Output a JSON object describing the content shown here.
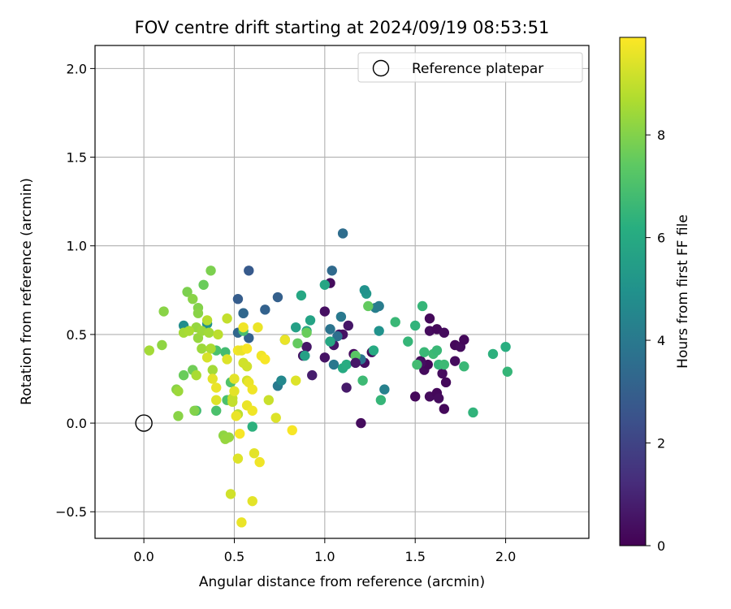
{
  "chart_data": {
    "type": "scatter",
    "title": "FOV centre drift starting at 2024/09/19 08:53:51",
    "xlabel": "Angular distance from reference (arcmin)",
    "ylabel": "Rotation from reference (arcmin)",
    "xlim": [
      -0.27,
      2.46
    ],
    "ylim": [
      -0.65,
      2.13
    ],
    "xticks": [
      0.0,
      0.5,
      1.0,
      1.5,
      2.0
    ],
    "xtick_labels": [
      "0.0",
      "0.5",
      "1.0",
      "1.5",
      "2.0"
    ],
    "yticks": [
      -0.5,
      0.0,
      0.5,
      1.0,
      1.5,
      2.0
    ],
    "ytick_labels": [
      "−0.5",
      "0.0",
      "0.5",
      "1.0",
      "1.5",
      "2.0"
    ],
    "grid": true,
    "legend": {
      "placement": "top-right",
      "entries": [
        "Reference platepar"
      ]
    },
    "reference_point": {
      "x": 0.0,
      "y": 0.0,
      "label": "Reference platepar"
    },
    "colorbar": {
      "label": "Hours from first FF file",
      "range": [
        0,
        9.9
      ],
      "ticks": [
        0,
        2,
        4,
        6,
        8
      ],
      "tick_labels": [
        "0",
        "2",
        "4",
        "6",
        "8"
      ],
      "colormap": "viridis"
    },
    "points": [
      {
        "x": 1.03,
        "y": 0.79,
        "h": 0.3
      },
      {
        "x": 1.0,
        "y": 0.63,
        "h": 0.4
      },
      {
        "x": 1.1,
        "y": 0.5,
        "h": 0.5
      },
      {
        "x": 1.13,
        "y": 0.55,
        "h": 0.6
      },
      {
        "x": 1.08,
        "y": 0.5,
        "h": 0.4
      },
      {
        "x": 1.0,
        "y": 0.37,
        "h": 0.5
      },
      {
        "x": 1.05,
        "y": 0.44,
        "h": 0.6
      },
      {
        "x": 1.16,
        "y": 0.39,
        "h": 0.3
      },
      {
        "x": 1.18,
        "y": 0.35,
        "h": 0.5
      },
      {
        "x": 1.22,
        "y": 0.34,
        "h": 0.4
      },
      {
        "x": 1.26,
        "y": 0.4,
        "h": 0.3
      },
      {
        "x": 0.93,
        "y": 0.27,
        "h": 0.8
      },
      {
        "x": 0.9,
        "y": 0.43,
        "h": 0.6
      },
      {
        "x": 0.88,
        "y": 0.38,
        "h": 0.5
      },
      {
        "x": 1.12,
        "y": 0.2,
        "h": 0.7
      },
      {
        "x": 1.2,
        "y": 0.0,
        "h": 0.3
      },
      {
        "x": 1.58,
        "y": 0.59,
        "h": 0.2
      },
      {
        "x": 1.58,
        "y": 0.52,
        "h": 0.3
      },
      {
        "x": 1.62,
        "y": 0.53,
        "h": 0.2
      },
      {
        "x": 1.66,
        "y": 0.51,
        "h": 0.3
      },
      {
        "x": 1.72,
        "y": 0.44,
        "h": 0.2
      },
      {
        "x": 1.75,
        "y": 0.43,
        "h": 0.3
      },
      {
        "x": 1.77,
        "y": 0.47,
        "h": 0.2
      },
      {
        "x": 1.72,
        "y": 0.35,
        "h": 0.3
      },
      {
        "x": 1.53,
        "y": 0.35,
        "h": 0.2
      },
      {
        "x": 1.55,
        "y": 0.3,
        "h": 0.3
      },
      {
        "x": 1.57,
        "y": 0.33,
        "h": 0.2
      },
      {
        "x": 1.58,
        "y": 0.15,
        "h": 0.3
      },
      {
        "x": 1.62,
        "y": 0.17,
        "h": 0.2
      },
      {
        "x": 1.65,
        "y": 0.28,
        "h": 0.3
      },
      {
        "x": 1.67,
        "y": 0.23,
        "h": 0.2
      },
      {
        "x": 1.63,
        "y": 0.14,
        "h": 0.3
      },
      {
        "x": 1.66,
        "y": 0.08,
        "h": 0.2
      },
      {
        "x": 1.5,
        "y": 0.15,
        "h": 0.2
      },
      {
        "x": 1.53,
        "y": 0.34,
        "h": 0.4
      },
      {
        "x": 1.1,
        "y": 1.07,
        "h": 3.5
      },
      {
        "x": 1.04,
        "y": 0.86,
        "h": 3.4
      },
      {
        "x": 0.58,
        "y": 0.86,
        "h": 2.8
      },
      {
        "x": 0.52,
        "y": 0.7,
        "h": 2.9
      },
      {
        "x": 0.74,
        "y": 0.71,
        "h": 3.0
      },
      {
        "x": 0.67,
        "y": 0.64,
        "h": 3.1
      },
      {
        "x": 0.55,
        "y": 0.62,
        "h": 3.2
      },
      {
        "x": 0.58,
        "y": 0.48,
        "h": 3.1
      },
      {
        "x": 0.52,
        "y": 0.51,
        "h": 3.3
      },
      {
        "x": 1.03,
        "y": 0.53,
        "h": 3.8
      },
      {
        "x": 1.09,
        "y": 0.6,
        "h": 4.0
      },
      {
        "x": 1.05,
        "y": 0.33,
        "h": 3.9
      },
      {
        "x": 1.07,
        "y": 0.49,
        "h": 3.6
      },
      {
        "x": 1.2,
        "y": 0.36,
        "h": 3.8
      },
      {
        "x": 1.28,
        "y": 0.65,
        "h": 4.2
      },
      {
        "x": 1.3,
        "y": 0.66,
        "h": 4.1
      },
      {
        "x": 1.33,
        "y": 0.19,
        "h": 4.3
      },
      {
        "x": 0.74,
        "y": 0.21,
        "h": 4.0
      },
      {
        "x": 0.78,
        "y": 0.47,
        "h": 4.5
      },
      {
        "x": 0.76,
        "y": 0.24,
        "h": 4.6
      },
      {
        "x": 0.22,
        "y": 0.55,
        "h": 4.8
      },
      {
        "x": 0.35,
        "y": 0.56,
        "h": 4.9
      },
      {
        "x": 1.3,
        "y": 0.52,
        "h": 5.0
      },
      {
        "x": 1.23,
        "y": 0.73,
        "h": 5.2
      },
      {
        "x": 1.22,
        "y": 0.75,
        "h": 5.0
      },
      {
        "x": 0.84,
        "y": 0.54,
        "h": 5.6
      },
      {
        "x": 0.87,
        "y": 0.72,
        "h": 5.9
      },
      {
        "x": 1.0,
        "y": 0.78,
        "h": 5.8
      },
      {
        "x": 0.92,
        "y": 0.58,
        "h": 5.7
      },
      {
        "x": 0.9,
        "y": 0.52,
        "h": 5.8
      },
      {
        "x": 0.89,
        "y": 0.38,
        "h": 5.6
      },
      {
        "x": 1.03,
        "y": 0.46,
        "h": 5.9
      },
      {
        "x": 1.1,
        "y": 0.31,
        "h": 6.0
      },
      {
        "x": 1.12,
        "y": 0.33,
        "h": 6.1
      },
      {
        "x": 1.27,
        "y": 0.41,
        "h": 6.0
      },
      {
        "x": 1.31,
        "y": 0.13,
        "h": 6.5
      },
      {
        "x": 1.21,
        "y": 0.24,
        "h": 6.7
      },
      {
        "x": 1.39,
        "y": 0.57,
        "h": 6.6
      },
      {
        "x": 1.46,
        "y": 0.46,
        "h": 6.5
      },
      {
        "x": 1.5,
        "y": 0.55,
        "h": 6.4
      },
      {
        "x": 1.54,
        "y": 0.66,
        "h": 6.5
      },
      {
        "x": 1.55,
        "y": 0.4,
        "h": 6.6
      },
      {
        "x": 1.6,
        "y": 0.39,
        "h": 6.7
      },
      {
        "x": 1.62,
        "y": 0.41,
        "h": 6.6
      },
      {
        "x": 1.51,
        "y": 0.33,
        "h": 6.8
      },
      {
        "x": 1.63,
        "y": 0.33,
        "h": 6.5
      },
      {
        "x": 1.66,
        "y": 0.33,
        "h": 6.7
      },
      {
        "x": 1.77,
        "y": 0.32,
        "h": 6.6
      },
      {
        "x": 1.82,
        "y": 0.06,
        "h": 6.4
      },
      {
        "x": 1.93,
        "y": 0.39,
        "h": 6.3
      },
      {
        "x": 2.0,
        "y": 0.43,
        "h": 6.2
      },
      {
        "x": 2.01,
        "y": 0.29,
        "h": 6.5
      },
      {
        "x": 0.6,
        "y": -0.02,
        "h": 6.3
      },
      {
        "x": 0.55,
        "y": 0.52,
        "h": 6.9
      },
      {
        "x": 0.45,
        "y": 0.4,
        "h": 6.8
      },
      {
        "x": 0.4,
        "y": 0.41,
        "h": 7.0
      },
      {
        "x": 0.29,
        "y": 0.07,
        "h": 6.8
      },
      {
        "x": 0.4,
        "y": 0.07,
        "h": 7.0
      },
      {
        "x": 0.48,
        "y": 0.23,
        "h": 7.1
      },
      {
        "x": 0.46,
        "y": 0.13,
        "h": 7.0
      },
      {
        "x": 1.17,
        "y": 0.38,
        "h": 7.3
      },
      {
        "x": 1.24,
        "y": 0.66,
        "h": 7.5
      },
      {
        "x": 0.85,
        "y": 0.45,
        "h": 7.5
      },
      {
        "x": 0.9,
        "y": 0.51,
        "h": 7.6
      },
      {
        "x": 0.22,
        "y": 0.27,
        "h": 7.6
      },
      {
        "x": 0.27,
        "y": 0.3,
        "h": 7.7
      },
      {
        "x": 0.33,
        "y": 0.78,
        "h": 7.6
      },
      {
        "x": 0.37,
        "y": 0.86,
        "h": 7.9
      },
      {
        "x": 0.24,
        "y": 0.74,
        "h": 7.9
      },
      {
        "x": 0.3,
        "y": 0.65,
        "h": 8.0
      },
      {
        "x": 0.27,
        "y": 0.7,
        "h": 8.1
      },
      {
        "x": 0.3,
        "y": 0.62,
        "h": 8.1
      },
      {
        "x": 0.11,
        "y": 0.63,
        "h": 8.1
      },
      {
        "x": 0.1,
        "y": 0.44,
        "h": 8.2
      },
      {
        "x": 0.03,
        "y": 0.41,
        "h": 8.5
      },
      {
        "x": 0.18,
        "y": 0.19,
        "h": 8.1
      },
      {
        "x": 0.19,
        "y": 0.18,
        "h": 8.4
      },
      {
        "x": 0.19,
        "y": 0.04,
        "h": 8.1
      },
      {
        "x": 0.28,
        "y": 0.07,
        "h": 8.0
      },
      {
        "x": 0.29,
        "y": 0.54,
        "h": 8.3
      },
      {
        "x": 0.3,
        "y": 0.48,
        "h": 8.3
      },
      {
        "x": 0.32,
        "y": 0.52,
        "h": 8.4
      },
      {
        "x": 0.36,
        "y": 0.51,
        "h": 8.5
      },
      {
        "x": 0.22,
        "y": 0.51,
        "h": 8.5
      },
      {
        "x": 0.25,
        "y": 0.52,
        "h": 8.6
      },
      {
        "x": 0.32,
        "y": 0.42,
        "h": 8.4
      },
      {
        "x": 0.37,
        "y": 0.42,
        "h": 8.6
      },
      {
        "x": 0.29,
        "y": 0.27,
        "h": 8.6
      },
      {
        "x": 0.38,
        "y": 0.3,
        "h": 8.5
      },
      {
        "x": 0.35,
        "y": 0.58,
        "h": 8.8
      },
      {
        "x": 0.41,
        "y": 0.5,
        "h": 8.9
      },
      {
        "x": 0.46,
        "y": 0.59,
        "h": 9.0
      },
      {
        "x": 0.44,
        "y": -0.07,
        "h": 8.2
      },
      {
        "x": 0.45,
        "y": -0.09,
        "h": 8.3
      },
      {
        "x": 0.47,
        "y": -0.08,
        "h": 8.3
      },
      {
        "x": 0.49,
        "y": 0.14,
        "h": 9.0
      },
      {
        "x": 0.49,
        "y": 0.12,
        "h": 9.0
      },
      {
        "x": 0.52,
        "y": 0.05,
        "h": 8.9
      },
      {
        "x": 0.55,
        "y": 0.34,
        "h": 9.2
      },
      {
        "x": 0.57,
        "y": 0.32,
        "h": 9.2
      },
      {
        "x": 0.57,
        "y": 0.24,
        "h": 9.2
      },
      {
        "x": 0.69,
        "y": 0.13,
        "h": 9.1
      },
      {
        "x": 0.84,
        "y": 0.24,
        "h": 9.4
      },
      {
        "x": 0.78,
        "y": 0.47,
        "h": 9.6
      },
      {
        "x": 0.63,
        "y": 0.54,
        "h": 9.6
      },
      {
        "x": 0.55,
        "y": 0.54,
        "h": 9.7
      },
      {
        "x": 0.52,
        "y": 0.41,
        "h": 9.7
      },
      {
        "x": 0.54,
        "y": 0.41,
        "h": 9.6
      },
      {
        "x": 0.57,
        "y": 0.42,
        "h": 9.8
      },
      {
        "x": 0.65,
        "y": 0.38,
        "h": 9.7
      },
      {
        "x": 0.67,
        "y": 0.36,
        "h": 9.8
      },
      {
        "x": 0.46,
        "y": 0.36,
        "h": 9.4
      },
      {
        "x": 0.5,
        "y": 0.25,
        "h": 9.5
      },
      {
        "x": 0.38,
        "y": 0.25,
        "h": 9.5
      },
      {
        "x": 0.35,
        "y": 0.37,
        "h": 9.3
      },
      {
        "x": 0.4,
        "y": 0.2,
        "h": 9.6
      },
      {
        "x": 0.4,
        "y": 0.13,
        "h": 9.4
      },
      {
        "x": 0.5,
        "y": 0.18,
        "h": 9.5
      },
      {
        "x": 0.58,
        "y": 0.23,
        "h": 9.6
      },
      {
        "x": 0.6,
        "y": 0.19,
        "h": 9.7
      },
      {
        "x": 0.57,
        "y": 0.1,
        "h": 9.6
      },
      {
        "x": 0.6,
        "y": 0.07,
        "h": 9.7
      },
      {
        "x": 0.51,
        "y": 0.04,
        "h": 9.6
      },
      {
        "x": 0.53,
        "y": -0.06,
        "h": 9.8
      },
      {
        "x": 0.52,
        "y": -0.2,
        "h": 9.4
      },
      {
        "x": 0.61,
        "y": -0.17,
        "h": 9.5
      },
      {
        "x": 0.64,
        "y": -0.22,
        "h": 9.7
      },
      {
        "x": 0.48,
        "y": -0.4,
        "h": 9.2
      },
      {
        "x": 0.6,
        "y": -0.44,
        "h": 9.5
      },
      {
        "x": 0.54,
        "y": -0.56,
        "h": 9.6
      },
      {
        "x": 0.73,
        "y": 0.03,
        "h": 9.4
      },
      {
        "x": 0.82,
        "y": -0.04,
        "h": 9.8
      },
      {
        "x": 0.55,
        "y": 0.62,
        "h": 3.3
      },
      {
        "x": 1.17,
        "y": 0.34,
        "h": 0.6
      }
    ]
  }
}
